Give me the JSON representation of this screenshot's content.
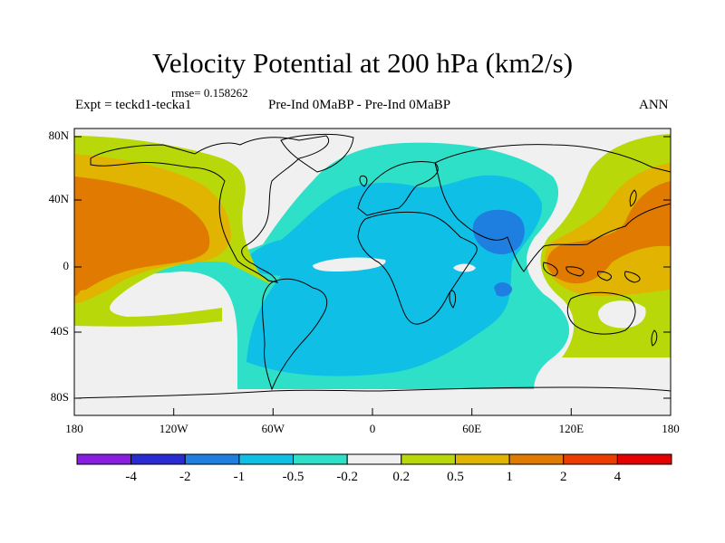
{
  "title": "Velocity Potential at 200 hPa (km2/s)",
  "left_label": "Expt = teckd1-tecka1",
  "rmse_label": "rmse= 0.158262",
  "center_label": "Pre-Ind 0MaBP - Pre-Ind 0MaBP",
  "right_label": "ANN",
  "lat_ticks": [
    "80N",
    "40N",
    "0",
    "40S",
    "80S"
  ],
  "lon_ticks": [
    "180",
    "120W",
    "60W",
    "0",
    "60E",
    "120E",
    "180"
  ],
  "colorbar": {
    "labels": [
      "-4",
      "-2",
      "-1",
      "-0.5",
      "-0.2",
      "0.2",
      "0.5",
      "1",
      "2",
      "4"
    ],
    "colors": [
      "#8a1ee0",
      "#2b2bd4",
      "#1e7fe0",
      "#10bfe6",
      "#2ee0c8",
      "#f0f0f0",
      "#b9d80a",
      "#e0b400",
      "#e07a00",
      "#ec3c00",
      "#e60000"
    ]
  },
  "palette": {
    "land_outline": "#000000",
    "background": "#f0f0f0",
    "teal": "#2ee0c8",
    "cyan": "#10bfe6",
    "blue": "#1e7fe0",
    "yellowgreen": "#b9d80a",
    "gold": "#e0b400",
    "orange": "#e07a00"
  }
}
